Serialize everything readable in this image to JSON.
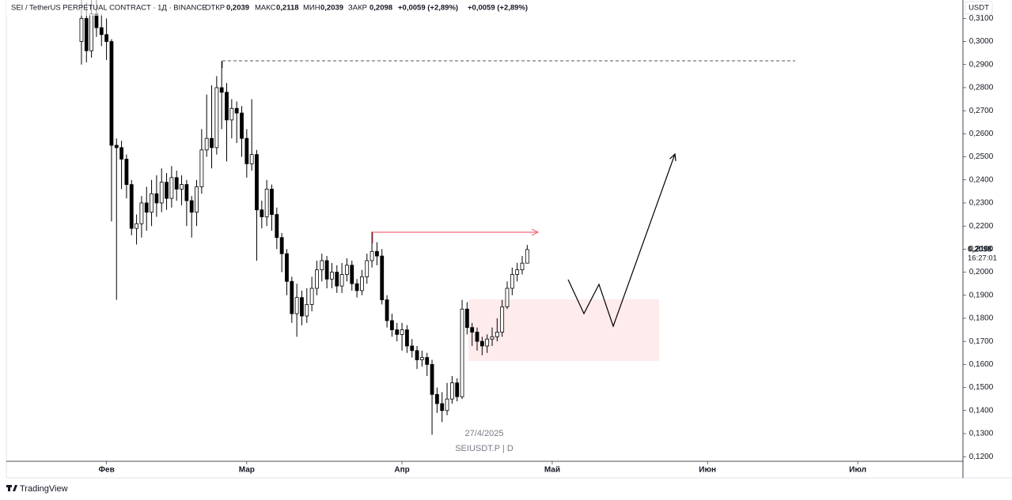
{
  "chart_data": {
    "type": "candlestick",
    "title": "SEI / TetherUS PERPETUAL CONTRACT · 1Д · BINANCE",
    "ohlc_legend": [
      {
        "label": "ОТКР",
        "value": "0,2039"
      },
      {
        "label": "МАКС",
        "value": "0,2118"
      },
      {
        "label": "МИН",
        "value": "0,2039"
      },
      {
        "label": "ЗАКР",
        "value": "0,2098"
      }
    ],
    "changes": [
      "+0,0059 (+2,89%)",
      "+0,0059 (+2,89%)"
    ],
    "x": [
      -5,
      -4,
      -3,
      -2,
      -1,
      0,
      1,
      2,
      3,
      4,
      5,
      6,
      7,
      8,
      9,
      10,
      11,
      12,
      13,
      14,
      15,
      16,
      17,
      18,
      19,
      20,
      21,
      22,
      23,
      24,
      25,
      26,
      27,
      28,
      29,
      30,
      31,
      32,
      33,
      34,
      35,
      36,
      37,
      38,
      39,
      40,
      41,
      42,
      43,
      44,
      45,
      46,
      47,
      48,
      49,
      50,
      51,
      52,
      53,
      54,
      55,
      56,
      57,
      58,
      59,
      60,
      61,
      62,
      63,
      64,
      65,
      66,
      67,
      68,
      69,
      70,
      71,
      72,
      73,
      74,
      75,
      76,
      77,
      78,
      79,
      80,
      81,
      82,
      83,
      84
    ],
    "open": [
      0.3,
      0.31,
      0.296,
      0.312,
      0.306,
      0.303,
      0.3,
      0.255,
      0.254,
      0.249,
      0.238,
      0.219,
      0.221,
      0.23,
      0.226,
      0.234,
      0.23,
      0.239,
      0.232,
      0.241,
      0.236,
      0.238,
      0.231,
      0.226,
      0.237,
      0.253,
      0.258,
      0.254,
      0.28,
      0.278,
      0.266,
      0.271,
      0.269,
      0.258,
      0.247,
      0.251,
      0.227,
      0.224,
      0.236,
      0.225,
      0.215,
      0.208,
      0.196,
      0.182,
      0.189,
      0.181,
      0.186,
      0.193,
      0.201,
      0.205,
      0.197,
      0.2,
      0.194,
      0.199,
      0.203,
      0.195,
      0.192,
      0.198,
      0.205,
      0.209,
      0.207,
      0.188,
      0.179,
      0.175,
      0.173,
      0.175,
      0.168,
      0.166,
      0.162,
      0.163,
      0.16,
      0.147,
      0.143,
      0.14,
      0.145,
      0.152,
      0.146,
      0.184,
      0.176,
      0.174,
      0.17,
      0.168,
      0.171,
      0.172,
      0.174,
      0.185,
      0.193,
      0.199,
      0.201,
      0.2039
    ],
    "high": [
      0.318,
      0.317,
      0.318,
      0.318,
      0.312,
      0.31,
      0.301,
      0.258,
      0.257,
      0.251,
      0.24,
      0.225,
      0.233,
      0.237,
      0.24,
      0.242,
      0.245,
      0.243,
      0.246,
      0.244,
      0.242,
      0.24,
      0.233,
      0.24,
      0.262,
      0.277,
      0.281,
      0.285,
      0.2915,
      0.282,
      0.275,
      0.274,
      0.272,
      0.262,
      0.275,
      0.253,
      0.231,
      0.24,
      0.238,
      0.228,
      0.217,
      0.21,
      0.198,
      0.195,
      0.192,
      0.193,
      0.198,
      0.205,
      0.208,
      0.207,
      0.204,
      0.203,
      0.204,
      0.206,
      0.205,
      0.197,
      0.201,
      0.208,
      0.2175,
      0.213,
      0.21,
      0.19,
      0.182,
      0.178,
      0.178,
      0.177,
      0.171,
      0.168,
      0.166,
      0.165,
      0.162,
      0.15,
      0.148,
      0.152,
      0.155,
      0.154,
      0.188,
      0.187,
      0.178,
      0.176,
      0.172,
      0.173,
      0.176,
      0.18,
      0.188,
      0.196,
      0.202,
      0.204,
      0.207,
      0.2118
    ],
    "low": [
      0.29,
      0.291,
      0.293,
      0.302,
      0.298,
      0.292,
      0.222,
      0.188,
      0.236,
      0.232,
      0.216,
      0.212,
      0.215,
      0.218,
      0.22,
      0.224,
      0.226,
      0.227,
      0.228,
      0.231,
      0.229,
      0.22,
      0.215,
      0.22,
      0.234,
      0.25,
      0.245,
      0.251,
      0.262,
      0.248,
      0.258,
      0.256,
      0.25,
      0.241,
      0.244,
      0.205,
      0.219,
      0.22,
      0.218,
      0.21,
      0.2,
      0.19,
      0.178,
      0.172,
      0.177,
      0.178,
      0.183,
      0.19,
      0.196,
      0.193,
      0.193,
      0.191,
      0.191,
      0.196,
      0.192,
      0.189,
      0.19,
      0.195,
      0.202,
      0.203,
      0.186,
      0.176,
      0.172,
      0.17,
      0.166,
      0.165,
      0.163,
      0.158,
      0.159,
      0.155,
      0.1295,
      0.139,
      0.135,
      0.138,
      0.143,
      0.144,
      0.145,
      0.173,
      0.168,
      0.166,
      0.164,
      0.165,
      0.168,
      0.17,
      0.172,
      0.184,
      0.19,
      0.196,
      0.199,
      0.2039
    ],
    "close": [
      0.31,
      0.296,
      0.312,
      0.306,
      0.303,
      0.3,
      0.255,
      0.254,
      0.249,
      0.238,
      0.219,
      0.221,
      0.23,
      0.226,
      0.234,
      0.23,
      0.239,
      0.232,
      0.241,
      0.236,
      0.238,
      0.231,
      0.226,
      0.237,
      0.253,
      0.258,
      0.254,
      0.28,
      0.278,
      0.266,
      0.271,
      0.269,
      0.258,
      0.247,
      0.251,
      0.227,
      0.224,
      0.236,
      0.225,
      0.215,
      0.208,
      0.196,
      0.182,
      0.189,
      0.181,
      0.186,
      0.193,
      0.201,
      0.205,
      0.197,
      0.2,
      0.194,
      0.199,
      0.203,
      0.195,
      0.192,
      0.198,
      0.205,
      0.209,
      0.207,
      0.188,
      0.179,
      0.175,
      0.173,
      0.175,
      0.168,
      0.166,
      0.162,
      0.163,
      0.16,
      0.147,
      0.143,
      0.14,
      0.145,
      0.152,
      0.146,
      0.184,
      0.176,
      0.174,
      0.17,
      0.168,
      0.171,
      0.172,
      0.174,
      0.185,
      0.193,
      0.199,
      0.201,
      0.2039,
      0.2098
    ],
    "up_color": "#ffffff",
    "down_color": "#000000",
    "wick_color": "#000000",
    "xlim": [
      -20,
      171
    ],
    "xticks": [
      {
        "value": 0,
        "label": "Фев"
      },
      {
        "value": 28,
        "label": "Мар"
      },
      {
        "value": 59,
        "label": "Апр"
      },
      {
        "value": 89,
        "label": "Май"
      },
      {
        "value": 120,
        "label": "Июн"
      },
      {
        "value": 150,
        "label": "Июл"
      }
    ],
    "ylim": [
      0.118,
      0.318
    ],
    "yticks": [
      {
        "value": 0.12,
        "label": "0,1200"
      },
      {
        "value": 0.13,
        "label": "0,1300"
      },
      {
        "value": 0.14,
        "label": "0,1400"
      },
      {
        "value": 0.15,
        "label": "0,1500"
      },
      {
        "value": 0.16,
        "label": "0,1600"
      },
      {
        "value": 0.17,
        "label": "0,1700"
      },
      {
        "value": 0.18,
        "label": "0,1800"
      },
      {
        "value": 0.19,
        "label": "0,1900"
      },
      {
        "value": 0.2,
        "label": "0,2000"
      },
      {
        "value": 0.21,
        "label": "0,2100"
      },
      {
        "value": 0.22,
        "label": "0,2200"
      },
      {
        "value": 0.23,
        "label": "0,2300"
      },
      {
        "value": 0.24,
        "label": "0,2400"
      },
      {
        "value": 0.25,
        "label": "0,2500"
      },
      {
        "value": 0.26,
        "label": "0,2600"
      },
      {
        "value": 0.27,
        "label": "0,2700"
      },
      {
        "value": 0.28,
        "label": "0,2800"
      },
      {
        "value": 0.29,
        "label": "0,2900"
      },
      {
        "value": 0.3,
        "label": "0,3000"
      },
      {
        "value": 0.31,
        "label": "0,3100"
      }
    ],
    "grid": false,
    "y_unit": "USDT",
    "last_price_label": "0,2098",
    "countdown": "16:27:01",
    "annotations": [
      "27/4/2025",
      "SEIUSDT.P | D"
    ]
  },
  "footer": {
    "brand": "TradingView"
  }
}
